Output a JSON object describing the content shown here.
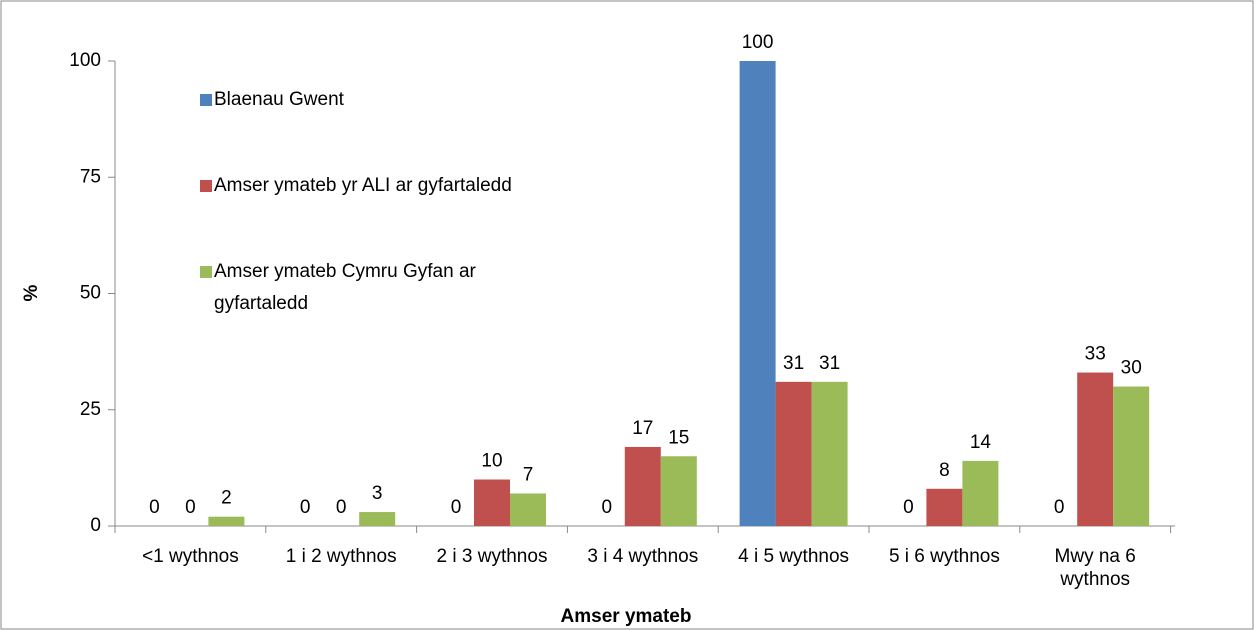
{
  "chart_data": {
    "type": "bar",
    "x_label": "Amser ymateb",
    "y_label": "%",
    "categories": [
      "<1 wythnos",
      "1 i 2 wythnos",
      "2 i 3 wythnos",
      "3 i 4 wythnos",
      "4 i 5 wythnos",
      "5 i 6 wythnos",
      "Mwy na 6 wythnos"
    ],
    "series": [
      {
        "name": "Blaenau Gwent",
        "color": "#4f81bd",
        "values": [
          0,
          0,
          0,
          0,
          100,
          0,
          0
        ]
      },
      {
        "name": "Amser ymateb yr ALI ar gyfartaledd",
        "color": "#c0504d",
        "values": [
          0,
          0,
          10,
          17,
          31,
          8,
          33
        ]
      },
      {
        "name": "Amser ymateb Cymru Gyfan ar gyfartaledd",
        "color": "#9bbb59",
        "values": [
          2,
          3,
          7,
          15,
          31,
          14,
          30
        ]
      }
    ],
    "ylim": [
      0,
      100
    ],
    "yticks": [
      0,
      25,
      50,
      75,
      100
    ],
    "grid": false,
    "legend": "upper left"
  }
}
